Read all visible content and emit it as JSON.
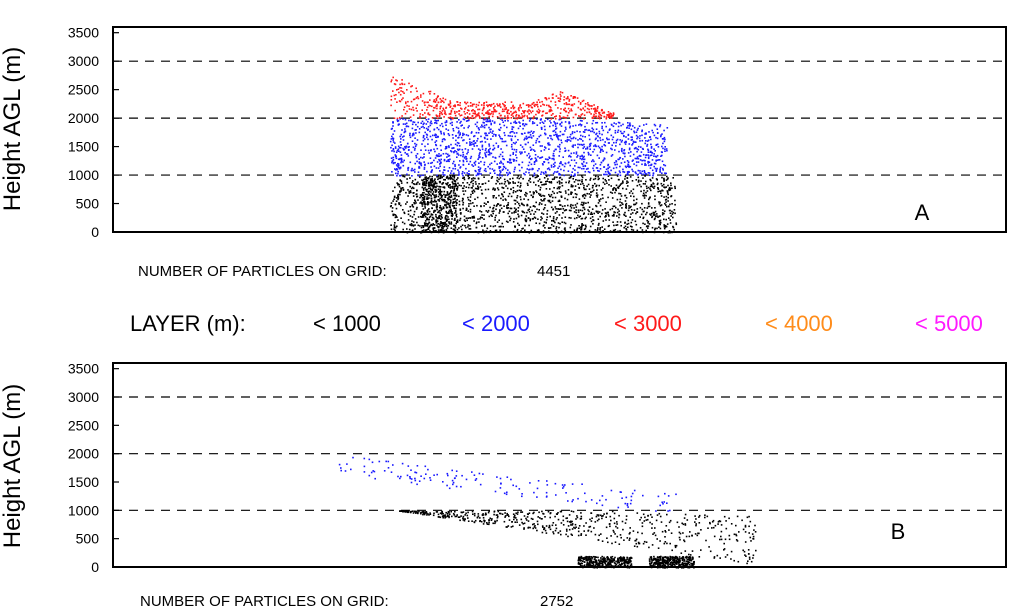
{
  "legend": {
    "title": "LAYER (m):",
    "entries": [
      {
        "label": "< 1000",
        "color": "#000000"
      },
      {
        "label": "< 2000",
        "color": "#1a1aff"
      },
      {
        "label": "< 3000",
        "color": "#ff1a1a"
      },
      {
        "label": "< 4000",
        "color": "#ff8c1a"
      },
      {
        "label": "< 5000",
        "color": "#ff1aff"
      }
    ]
  },
  "chart_data": [
    {
      "type": "scatter",
      "panel": "A",
      "ylabel": "Height AGL (m)",
      "yticks": [
        "0",
        "500",
        "1000",
        "1500",
        "2000",
        "2500",
        "3000",
        "3500"
      ],
      "ylim": [
        0,
        3500
      ],
      "grid_lines_at": [
        1000,
        2000,
        3000
      ],
      "caption_label": "NUMBER OF PARTICLES ON GRID:",
      "caption_value": "4451",
      "series": [
        {
          "layer": "< 1000",
          "color": "#000000",
          "x_range": [
            0.31,
            0.63
          ],
          "y_range": [
            0,
            1000
          ],
          "density": "dense",
          "dense_bands": [
            [
              0.345,
              0.385
            ]
          ]
        },
        {
          "layer": "< 2000",
          "color": "#1a1aff",
          "x_range": [
            0.31,
            0.62
          ],
          "y_range": [
            1000,
            2000
          ],
          "density": "dense",
          "upper_edge": [
            [
              0.31,
              2000
            ],
            [
              0.5,
              2000
            ],
            [
              0.62,
              1900
            ]
          ]
        },
        {
          "layer": "< 3000",
          "color": "#ff1a1a",
          "x_range": [
            0.31,
            0.56
          ],
          "y_range": [
            2000,
            2900
          ],
          "density": "medium",
          "upper_edge": [
            [
              0.31,
              2800
            ],
            [
              0.38,
              2300
            ],
            [
              0.47,
              2300
            ],
            [
              0.5,
              2500
            ],
            [
              0.56,
              2100
            ]
          ]
        }
      ]
    },
    {
      "type": "scatter",
      "panel": "B",
      "ylabel": "Height AGL (m)",
      "yticks": [
        "0",
        "500",
        "1000",
        "1500",
        "2000",
        "2500",
        "3000",
        "3500"
      ],
      "ylim": [
        0,
        3500
      ],
      "grid_lines_at": [
        1000,
        2000,
        3000
      ],
      "caption_label": "NUMBER OF PARTICLES ON GRID:",
      "caption_value": "2752",
      "series": [
        {
          "layer": "< 1000",
          "color": "#000000",
          "x_range": [
            0.32,
            0.72
          ],
          "y_range": [
            0,
            1000
          ],
          "density": "medium",
          "dense_clusters": [
            [
              0.52,
              0.58,
              0,
              200
            ],
            [
              0.6,
              0.65,
              0,
              200
            ]
          ],
          "upper_edge": [
            [
              0.32,
              1000
            ],
            [
              0.55,
              1000
            ],
            [
              0.72,
              900
            ]
          ]
        },
        {
          "layer": "< 2000",
          "color": "#1a1aff",
          "x_range": [
            0.25,
            0.63
          ],
          "y_range": [
            1000,
            2000
          ],
          "density": "sparse",
          "upper_edge": [
            [
              0.25,
              2000
            ],
            [
              0.4,
              1700
            ],
            [
              0.63,
              1300
            ]
          ]
        }
      ]
    }
  ]
}
